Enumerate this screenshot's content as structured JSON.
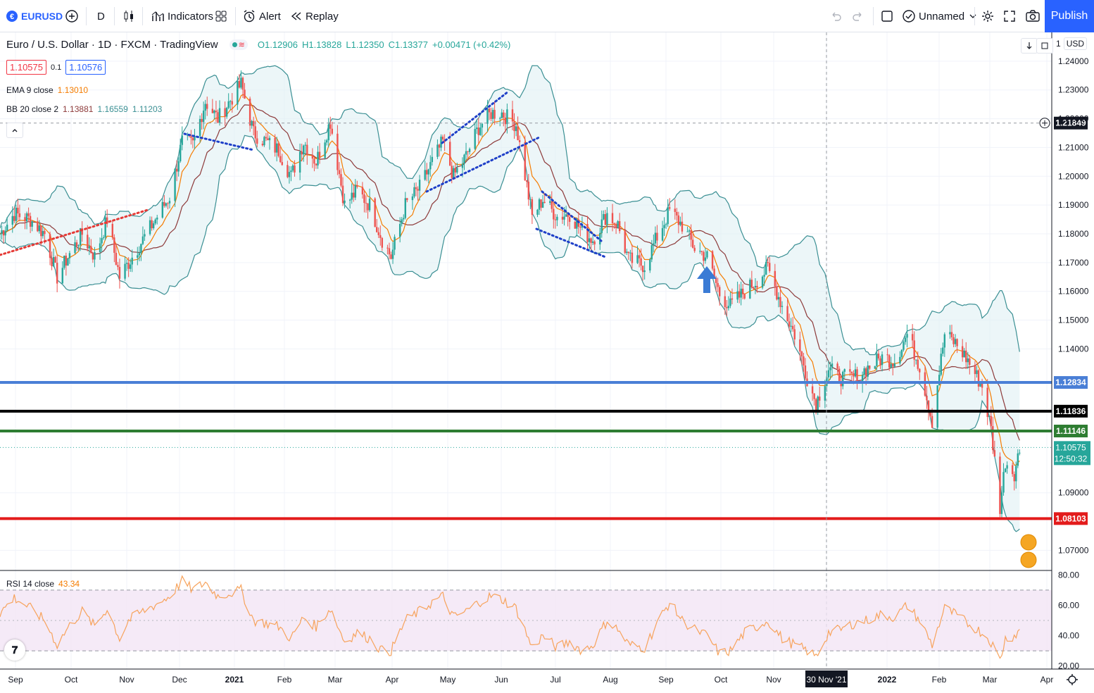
{
  "toolbar": {
    "symbol": "EURUSD",
    "interval": "D",
    "indicators_label": "Indicators",
    "alert_label": "Alert",
    "replay_label": "Replay",
    "layout_name": "Unnamed",
    "publish_label": "Publish"
  },
  "legend": {
    "title": "Euro / U.S. Dollar · 1D · FXCM · TradingView",
    "open": "O1.12906",
    "high": "H1.13828",
    "low": "L1.12350",
    "close": "C1.13377",
    "change": "+0.00471 (+0.42%)",
    "sell_price": "1.10575",
    "spread": "0.1",
    "buy_price": "1.10576",
    "ema_label": "EMA 9 close",
    "ema_value": "1.13010",
    "bb_label": "BB 20 close 2",
    "bb_basis": "1.13881",
    "bb_upper": "1.16559",
    "bb_lower": "1.11203",
    "rsi_label": "RSI 14 close",
    "rsi_value": "43.34"
  },
  "price_scale": {
    "currency": "USD",
    "scale_indicator": "1",
    "crosshair_price": "1.21849",
    "last_price": "1.10575",
    "countdown": "12:50:32"
  },
  "colors": {
    "up": "#26a69a",
    "down": "#ef5350",
    "bb_fill": "#e0f0f3",
    "bb_line": "#3a8f93",
    "ema": "#f57c00",
    "basis": "#8d3a3a",
    "rsi_line": "#f7a35c",
    "rsi_fill": "#f3e5f5",
    "level_blue": "#4a7fd6",
    "level_black": "#000000",
    "level_green": "#2e7d32",
    "level_red": "#e31b1b"
  },
  "time_axis": {
    "labels": [
      "Sep",
      "Oct",
      "Nov",
      "Dec",
      "2021",
      "Feb",
      "Mar",
      "Apr",
      "May",
      "Jun",
      "Jul",
      "Aug",
      "Sep",
      "Oct",
      "Nov",
      "30 Nov '21",
      "2022",
      "Feb",
      "Mar",
      "Apr"
    ]
  },
  "chart_data": [
    {
      "type": "candlestick",
      "title": "Euro / U.S. Dollar · 1D · FXCM · TradingView",
      "ylim": [
        1.063,
        1.25
      ],
      "y_ticks": [
        "1.24000",
        "1.23000",
        "1.22000",
        "1.21000",
        "1.20000",
        "1.19000",
        "1.18000",
        "1.17000",
        "1.16000",
        "1.15000",
        "1.14000",
        "1.09000",
        "1.07000"
      ],
      "x_range": [
        "2020-08-24",
        "2022-04-05"
      ],
      "grid": true,
      "series": [
        {
          "name": "EURUSD close",
          "points": [
            [
              "2020-08-24",
              1.18
            ],
            [
              "2020-09-01",
              1.187
            ],
            [
              "2020-09-10",
              1.185
            ],
            [
              "2020-09-18",
              1.18
            ],
            [
              "2020-09-25",
              1.165
            ],
            [
              "2020-10-01",
              1.172
            ],
            [
              "2020-10-09",
              1.18
            ],
            [
              "2020-10-16",
              1.172
            ],
            [
              "2020-10-23",
              1.185
            ],
            [
              "2020-10-30",
              1.165
            ],
            [
              "2020-11-04",
              1.17
            ],
            [
              "2020-11-12",
              1.178
            ],
            [
              "2020-11-20",
              1.186
            ],
            [
              "2020-11-27",
              1.193
            ],
            [
              "2020-12-04",
              1.212
            ],
            [
              "2020-12-10",
              1.211
            ],
            [
              "2020-12-17",
              1.226
            ],
            [
              "2020-12-24",
              1.22
            ],
            [
              "2021-01-06",
              1.232
            ],
            [
              "2021-01-13",
              1.215
            ],
            [
              "2021-01-20",
              1.212
            ],
            [
              "2021-01-27",
              1.209
            ],
            [
              "2021-02-03",
              1.2
            ],
            [
              "2021-02-10",
              1.212
            ],
            [
              "2021-02-17",
              1.205
            ],
            [
              "2021-02-25",
              1.219
            ],
            [
              "2021-03-05",
              1.19
            ],
            [
              "2021-03-12",
              1.195
            ],
            [
              "2021-03-19",
              1.19
            ],
            [
              "2021-03-26",
              1.178
            ],
            [
              "2021-03-31",
              1.172
            ],
            [
              "2021-04-08",
              1.19
            ],
            [
              "2021-04-16",
              1.196
            ],
            [
              "2021-04-23",
              1.205
            ],
            [
              "2021-04-29",
              1.212
            ],
            [
              "2021-05-05",
              1.2
            ],
            [
              "2021-05-12",
              1.207
            ],
            [
              "2021-05-19",
              1.217
            ],
            [
              "2021-05-26",
              1.222
            ],
            [
              "2021-06-01",
              1.222
            ],
            [
              "2021-06-09",
              1.218
            ],
            [
              "2021-06-18",
              1.186
            ],
            [
              "2021-06-24",
              1.192
            ],
            [
              "2021-07-02",
              1.186
            ],
            [
              "2021-07-09",
              1.187
            ],
            [
              "2021-07-16",
              1.181
            ],
            [
              "2021-07-22",
              1.178
            ],
            [
              "2021-07-30",
              1.187
            ],
            [
              "2021-08-05",
              1.183
            ],
            [
              "2021-08-11",
              1.171
            ],
            [
              "2021-08-20",
              1.169
            ],
            [
              "2021-08-27",
              1.179
            ],
            [
              "2021-09-03",
              1.188
            ],
            [
              "2021-09-10",
              1.183
            ],
            [
              "2021-09-17",
              1.175
            ],
            [
              "2021-09-24",
              1.172
            ],
            [
              "2021-10-01",
              1.159
            ],
            [
              "2021-10-07",
              1.155
            ],
            [
              "2021-10-15",
              1.16
            ],
            [
              "2021-10-22",
              1.164
            ],
            [
              "2021-10-28",
              1.168
            ],
            [
              "2021-11-05",
              1.155
            ],
            [
              "2021-11-12",
              1.145
            ],
            [
              "2021-11-19",
              1.13
            ],
            [
              "2021-11-24",
              1.121
            ],
            [
              "2021-12-01",
              1.133
            ],
            [
              "2021-12-08",
              1.13
            ],
            [
              "2021-12-15",
              1.13
            ],
            [
              "2021-12-22",
              1.133
            ],
            [
              "2021-12-31",
              1.137
            ],
            [
              "2022-01-07",
              1.136
            ],
            [
              "2022-01-14",
              1.145
            ],
            [
              "2022-01-21",
              1.134
            ],
            [
              "2022-01-28",
              1.115
            ],
            [
              "2022-02-04",
              1.145
            ],
            [
              "2022-02-10",
              1.142
            ],
            [
              "2022-02-17",
              1.136
            ],
            [
              "2022-02-25",
              1.127
            ],
            [
              "2022-03-02",
              1.112
            ],
            [
              "2022-03-07",
              1.085
            ],
            [
              "2022-03-10",
              1.101
            ],
            [
              "2022-03-15",
              1.097
            ],
            [
              "2022-03-18",
              1.105
            ]
          ]
        }
      ],
      "horizontal_levels": [
        {
          "value": "1.12834",
          "color": "#4a7fd6"
        },
        {
          "value": "1.11836",
          "color": "#000000"
        },
        {
          "value": "1.11146",
          "color": "#2e7d32"
        },
        {
          "value": "1.08103",
          "color": "#e31b1b"
        }
      ]
    },
    {
      "type": "line",
      "title": "RSI 14 close",
      "ylim": [
        18,
        82
      ],
      "y_ticks": [
        "80.00",
        "60.00",
        "40.00",
        "20.00"
      ],
      "band": [
        30,
        70
      ],
      "series": [
        {
          "name": "RSI 14 close",
          "points": [
            [
              "2020-08-24",
              55
            ],
            [
              "2020-09-01",
              65
            ],
            [
              "2020-09-10",
              58
            ],
            [
              "2020-09-18",
              50
            ],
            [
              "2020-09-25",
              34
            ],
            [
              "2020-10-01",
              45
            ],
            [
              "2020-10-09",
              56
            ],
            [
              "2020-10-16",
              46
            ],
            [
              "2020-10-23",
              58
            ],
            [
              "2020-10-30",
              38
            ],
            [
              "2020-11-04",
              50
            ],
            [
              "2020-11-12",
              56
            ],
            [
              "2020-11-20",
              61
            ],
            [
              "2020-11-27",
              66
            ],
            [
              "2020-12-04",
              76
            ],
            [
              "2020-12-10",
              70
            ],
            [
              "2020-12-17",
              75
            ],
            [
              "2020-12-24",
              66
            ],
            [
              "2021-01-06",
              70
            ],
            [
              "2021-01-13",
              50
            ],
            [
              "2021-01-20",
              48
            ],
            [
              "2021-01-27",
              46
            ],
            [
              "2021-02-03",
              38
            ],
            [
              "2021-02-10",
              52
            ],
            [
              "2021-02-17",
              46
            ],
            [
              "2021-02-25",
              58
            ],
            [
              "2021-03-05",
              36
            ],
            [
              "2021-03-12",
              42
            ],
            [
              "2021-03-19",
              38
            ],
            [
              "2021-03-26",
              30
            ],
            [
              "2021-03-31",
              30
            ],
            [
              "2021-04-08",
              50
            ],
            [
              "2021-04-16",
              56
            ],
            [
              "2021-04-23",
              62
            ],
            [
              "2021-04-29",
              66
            ],
            [
              "2021-05-05",
              52
            ],
            [
              "2021-05-12",
              56
            ],
            [
              "2021-05-19",
              62
            ],
            [
              "2021-05-26",
              66
            ],
            [
              "2021-06-01",
              64
            ],
            [
              "2021-06-09",
              58
            ],
            [
              "2021-06-18",
              32
            ],
            [
              "2021-06-24",
              40
            ],
            [
              "2021-07-02",
              32
            ],
            [
              "2021-07-09",
              36
            ],
            [
              "2021-07-16",
              30
            ],
            [
              "2021-07-22",
              34
            ],
            [
              "2021-07-30",
              50
            ],
            [
              "2021-08-05",
              44
            ],
            [
              "2021-08-11",
              34
            ],
            [
              "2021-08-20",
              32
            ],
            [
              "2021-08-27",
              48
            ],
            [
              "2021-09-03",
              62
            ],
            [
              "2021-09-10",
              50
            ],
            [
              "2021-09-17",
              44
            ],
            [
              "2021-09-24",
              40
            ],
            [
              "2021-10-01",
              28
            ],
            [
              "2021-10-07",
              30
            ],
            [
              "2021-10-15",
              42
            ],
            [
              "2021-10-22",
              46
            ],
            [
              "2021-10-28",
              50
            ],
            [
              "2021-11-05",
              38
            ],
            [
              "2021-11-12",
              34
            ],
            [
              "2021-11-19",
              30
            ],
            [
              "2021-11-24",
              26
            ],
            [
              "2021-12-01",
              42
            ],
            [
              "2021-12-08",
              44
            ],
            [
              "2021-12-15",
              48
            ],
            [
              "2021-12-22",
              50
            ],
            [
              "2021-12-31",
              54
            ],
            [
              "2022-01-07",
              52
            ],
            [
              "2022-01-14",
              60
            ],
            [
              "2022-01-21",
              50
            ],
            [
              "2022-01-28",
              34
            ],
            [
              "2022-02-04",
              58
            ],
            [
              "2022-02-10",
              54
            ],
            [
              "2022-02-17",
              48
            ],
            [
              "2022-02-25",
              42
            ],
            [
              "2022-03-02",
              36
            ],
            [
              "2022-03-07",
              24
            ],
            [
              "2022-03-10",
              38
            ],
            [
              "2022-03-15",
              40
            ],
            [
              "2022-03-18",
              43.34
            ]
          ]
        }
      ]
    }
  ]
}
